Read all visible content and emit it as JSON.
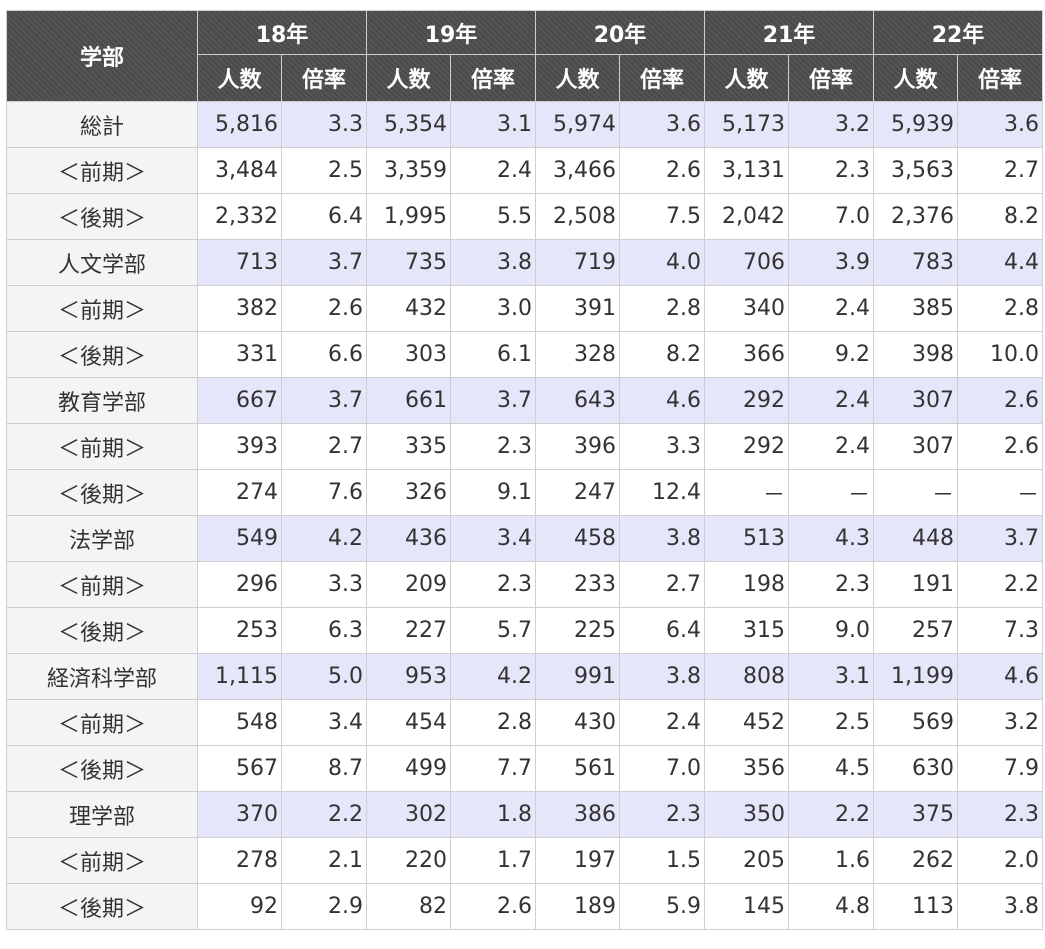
{
  "header": {
    "dept_label": "学部",
    "years": [
      "18年",
      "19年",
      "20年",
      "21年",
      "22年"
    ],
    "sub_labels": {
      "count": "人数",
      "rate": "倍率"
    }
  },
  "rows": [
    {
      "dept": "総計",
      "kind": "total",
      "values": [
        "5,816",
        "3.3",
        "5,354",
        "3.1",
        "5,974",
        "3.6",
        "5,173",
        "3.2",
        "5,939",
        "3.6"
      ]
    },
    {
      "dept": "＜前期＞",
      "kind": "sub",
      "values": [
        "3,484",
        "2.5",
        "3,359",
        "2.4",
        "3,466",
        "2.6",
        "3,131",
        "2.3",
        "3,563",
        "2.7"
      ]
    },
    {
      "dept": "＜後期＞",
      "kind": "sub",
      "values": [
        "2,332",
        "6.4",
        "1,995",
        "5.5",
        "2,508",
        "7.5",
        "2,042",
        "7.0",
        "2,376",
        "8.2"
      ]
    },
    {
      "dept": "人文学部",
      "kind": "total",
      "values": [
        "713",
        "3.7",
        "735",
        "3.8",
        "719",
        "4.0",
        "706",
        "3.9",
        "783",
        "4.4"
      ]
    },
    {
      "dept": "＜前期＞",
      "kind": "sub",
      "values": [
        "382",
        "2.6",
        "432",
        "3.0",
        "391",
        "2.8",
        "340",
        "2.4",
        "385",
        "2.8"
      ]
    },
    {
      "dept": "＜後期＞",
      "kind": "sub",
      "values": [
        "331",
        "6.6",
        "303",
        "6.1",
        "328",
        "8.2",
        "366",
        "9.2",
        "398",
        "10.0"
      ]
    },
    {
      "dept": "教育学部",
      "kind": "total",
      "values": [
        "667",
        "3.7",
        "661",
        "3.7",
        "643",
        "4.6",
        "292",
        "2.4",
        "307",
        "2.6"
      ]
    },
    {
      "dept": "＜前期＞",
      "kind": "sub",
      "values": [
        "393",
        "2.7",
        "335",
        "2.3",
        "396",
        "3.3",
        "292",
        "2.4",
        "307",
        "2.6"
      ]
    },
    {
      "dept": "＜後期＞",
      "kind": "sub",
      "values": [
        "274",
        "7.6",
        "326",
        "9.1",
        "247",
        "12.4",
        "－",
        "－",
        "－",
        "－"
      ]
    },
    {
      "dept": "法学部",
      "kind": "total",
      "values": [
        "549",
        "4.2",
        "436",
        "3.4",
        "458",
        "3.8",
        "513",
        "4.3",
        "448",
        "3.7"
      ]
    },
    {
      "dept": "＜前期＞",
      "kind": "sub",
      "values": [
        "296",
        "3.3",
        "209",
        "2.3",
        "233",
        "2.7",
        "198",
        "2.3",
        "191",
        "2.2"
      ]
    },
    {
      "dept": "＜後期＞",
      "kind": "sub",
      "values": [
        "253",
        "6.3",
        "227",
        "5.7",
        "225",
        "6.4",
        "315",
        "9.0",
        "257",
        "7.3"
      ]
    },
    {
      "dept": "経済科学部",
      "kind": "total",
      "values": [
        "1,115",
        "5.0",
        "953",
        "4.2",
        "991",
        "3.8",
        "808",
        "3.1",
        "1,199",
        "4.6"
      ]
    },
    {
      "dept": "＜前期＞",
      "kind": "sub",
      "values": [
        "548",
        "3.4",
        "454",
        "2.8",
        "430",
        "2.4",
        "452",
        "2.5",
        "569",
        "3.2"
      ]
    },
    {
      "dept": "＜後期＞",
      "kind": "sub",
      "values": [
        "567",
        "8.7",
        "499",
        "7.7",
        "561",
        "7.0",
        "356",
        "4.5",
        "630",
        "7.9"
      ]
    },
    {
      "dept": "理学部",
      "kind": "total",
      "values": [
        "370",
        "2.2",
        "302",
        "1.8",
        "386",
        "2.3",
        "350",
        "2.2",
        "375",
        "2.3"
      ]
    },
    {
      "dept": "＜前期＞",
      "kind": "sub",
      "values": [
        "278",
        "2.1",
        "220",
        "1.7",
        "197",
        "1.5",
        "205",
        "1.6",
        "262",
        "2.0"
      ]
    },
    {
      "dept": "＜後期＞",
      "kind": "sub",
      "values": [
        "92",
        "2.9",
        "82",
        "2.6",
        "189",
        "5.9",
        "145",
        "4.8",
        "113",
        "3.8"
      ]
    }
  ]
}
